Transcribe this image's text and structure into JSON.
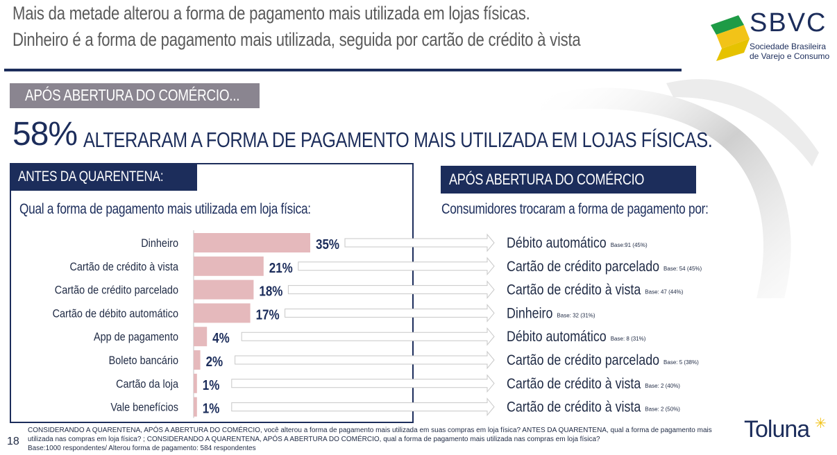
{
  "title": {
    "line1": "Mais da metade alterou a forma de pagamento mais utilizada em lojas físicas.",
    "line2": "Dinheiro é a forma de pagamento mais utilizada, seguida por cartão de crédito à vista"
  },
  "logo": {
    "letters": "SBVC",
    "sub1": "Sociedade Brasileira",
    "sub2": "de Varejo e Consumo"
  },
  "section_banner": "APÓS ABERTURA DO COMÉRCIO...",
  "headline": {
    "pct": "58%",
    "text": "ALTERARAM A FORMA DE PAGAMENTO MAIS UTILIZADA EM LOJAS FÍSICAS."
  },
  "left_panel": {
    "header": "ANTES DA QUARENTENA:",
    "question": "Qual a forma de pagamento mais utilizada em loja física:"
  },
  "right_panel": {
    "header": "APÓS ABERTURA DO COMÉRCIO",
    "question": "Consumidores trocaram a forma de pagamento por:"
  },
  "chart_data": {
    "type": "bar",
    "orientation": "horizontal",
    "categories": [
      "Dinheiro",
      "Cartão de crédito à vista",
      "Cartão de crédito parcelado",
      "Cartão de débito automático",
      "App de pagamento",
      "Boleto bancário",
      "Cartão da loja",
      "Vale benefícios"
    ],
    "values": [
      35,
      21,
      18,
      17,
      4,
      2,
      1,
      1
    ],
    "value_labels": [
      "35%",
      "21%",
      "18%",
      "17%",
      "4%",
      "2%",
      "1%",
      "1%"
    ],
    "bar_color": "#e5b9bc",
    "switched_to": [
      {
        "label": "Débito automático",
        "base": "Base:91 (45%)"
      },
      {
        "label": "Cartão de crédito parcelado",
        "base": "Base: 54 (45%)"
      },
      {
        "label": "Cartão de crédito à vista",
        "base": "Base: 47 (44%)"
      },
      {
        "label": "Dinheiro",
        "base": "Base: 32 (31%)"
      },
      {
        "label": "Débito automático",
        "base": "Base: 8 (31%)"
      },
      {
        "label": "Cartão de crédito parcelado",
        "base": "Base: 5 (38%)"
      },
      {
        "label": "Cartão de crédito à vista",
        "base": "Base: 2 (40%)"
      },
      {
        "label": "Cartão de crédito à vista",
        "base": "Base: 2 (50%)"
      }
    ]
  },
  "footnote": {
    "line1": "CONSIDERANDO A QUARENTENA, APÓS A ABERTURA DO COMÉRCIO, você alterou a forma de pagamento mais utilizada em suas compras em loja física? ANTES DA QUARENTENA, qual a forma de pagamento mais",
    "line2": "utilizada nas compras em loja física? ; CONSIDERANDO A QUARENTENA, APÓS A ABERTURA DO COMÉRCIO, qual a forma de pagamento mais utilizada nas compras em loja física?",
    "line3": "Base:1000 respondentes/ Alterou forma de pagamento: 584 respondentes"
  },
  "page_number": "18",
  "brand": "Toluna",
  "colors": {
    "navy": "#1c2d5b",
    "banner_gray": "#8a8590",
    "bar_pink": "#e5b9bc",
    "logo_green": "#1e9b46",
    "logo_yellow": "#f2c318"
  }
}
